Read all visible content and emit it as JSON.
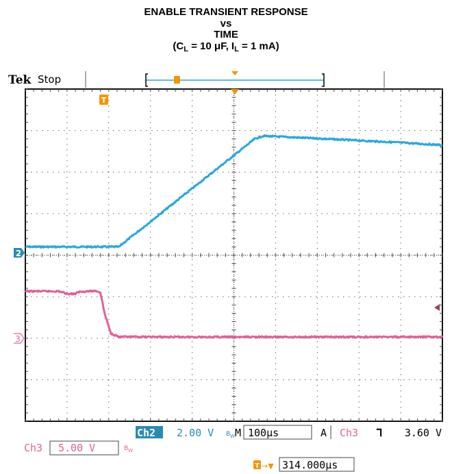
{
  "chart_data": {
    "type": "line",
    "title_lines": [
      "ENABLE TRANSIENT RESPONSE",
      "vs",
      "TIME"
    ],
    "title_cond": {
      "c_label": "C",
      "c_sub": "L",
      "c_val": " = 10 μF, ",
      "i_label": "I",
      "i_sub": "L",
      "i_val": " = 1 mA)"
    },
    "grid": true,
    "x_divisions": 10,
    "y_divisions": 8,
    "time_per_div": "100µs",
    "series": [
      {
        "channel": "2",
        "color": "#2aa8dc",
        "ground_div_from_top": 3.8,
        "volts_per_div": 2.0,
        "x_div": [
          0,
          2.25,
          2.3,
          5.5,
          5.7,
          7.0,
          8.0,
          9.0,
          10.0
        ],
        "y_div": [
          0.0,
          0.0,
          0.05,
          2.6,
          2.67,
          2.61,
          2.56,
          2.51,
          2.45
        ]
      },
      {
        "channel": "3",
        "color": "#e0609a",
        "ground_div_from_top": 6.0,
        "volts_per_div": 5.0,
        "x_div": [
          0,
          0.8,
          1.0,
          1.2,
          1.3,
          1.7,
          1.8,
          1.9,
          2.05,
          2.25,
          10.0
        ],
        "y_div": [
          1.13,
          1.13,
          1.07,
          1.07,
          1.12,
          1.14,
          1.1,
          0.6,
          0.12,
          0.03,
          0.03
        ]
      }
    ]
  },
  "scope": {
    "brand": "Tek",
    "status": "Stop",
    "ch2_marker": "2",
    "ch3_marker": "3",
    "trigger_marker": "T",
    "readouts": {
      "ch2_label": "Ch2",
      "ch2_scale": "2.00 V",
      "bw": "B",
      "bw_sub": "W",
      "m_label": "M",
      "timebase": "100µs",
      "acq": "A",
      "trig_ch": "Ch3",
      "trig_slope": "⅂",
      "trig_level": "3.60 V",
      "ch3_label": "Ch3",
      "ch3_scale": "5.00 V",
      "trig_pos_arrow": "→▼",
      "trig_pos": "314.000µs"
    },
    "colors": {
      "ch2": "#2aa8dc",
      "ch3": "#e0609a",
      "trigger": "#f29500",
      "grid": "#777777"
    }
  }
}
